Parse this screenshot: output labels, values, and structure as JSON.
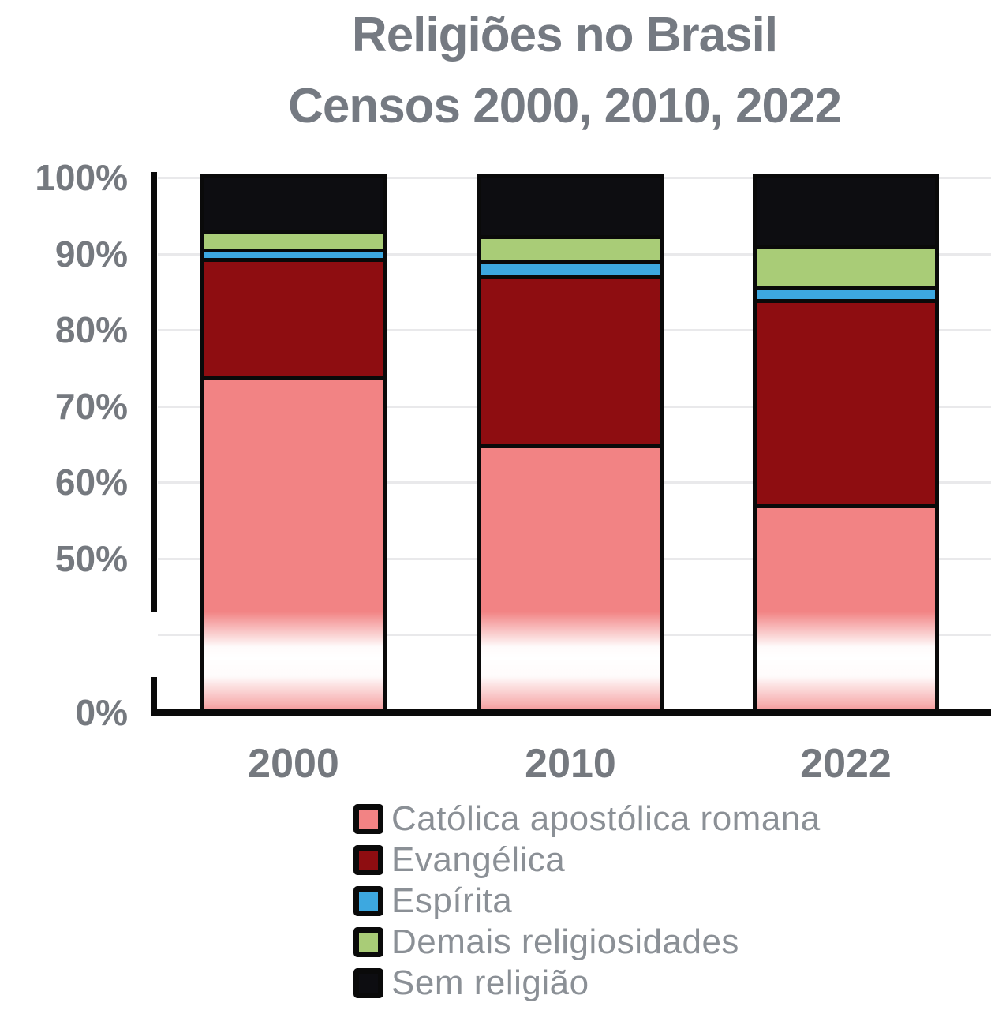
{
  "title": {
    "line1": "Religiões no Brasil",
    "line2": "Censos 2000, 2010, 2022"
  },
  "chart_data": {
    "type": "bar",
    "stacked": true,
    "title": "Religiões no Brasil — Censos 2000, 2010, 2022",
    "categories": [
      "2000",
      "2010",
      "2022"
    ],
    "series": [
      {
        "name": "Católica apostólica romana",
        "color": "#F28384",
        "values": [
          73.6,
          64.6,
          56.7
        ]
      },
      {
        "name": "Evangélica",
        "color": "#8E0D11",
        "values": [
          15.4,
          22.2,
          26.9
        ]
      },
      {
        "name": "Espírita",
        "color": "#3DA8E0",
        "values": [
          1.3,
          2.0,
          1.8
        ]
      },
      {
        "name": "Demais religiosidades",
        "color": "#A9CC77",
        "values": [
          2.3,
          3.2,
          5.3
        ]
      },
      {
        "name": "Sem religião",
        "color": "#0D0D11",
        "values": [
          7.4,
          8.0,
          9.3
        ]
      }
    ],
    "xlabel": "",
    "ylabel": "",
    "y_axis": {
      "unit": "%",
      "tick_labels": [
        "100%",
        "90%",
        "80%",
        "70%",
        "60%",
        "50%",
        "0%"
      ],
      "tick_values": [
        100,
        90,
        80,
        70,
        60,
        50,
        0
      ],
      "ylim": [
        0,
        100
      ],
      "axis_break": true,
      "break_hidden_range": [
        0,
        43
      ]
    },
    "grid": true,
    "legend_position": "bottom-left"
  },
  "colors": {
    "grid": "#E9E9EB",
    "axis": "#0A0A0A",
    "title_text": "#757A82",
    "tick_text": "#75797F",
    "legend_text": "#8B9096",
    "background": "#FFFFFF"
  }
}
